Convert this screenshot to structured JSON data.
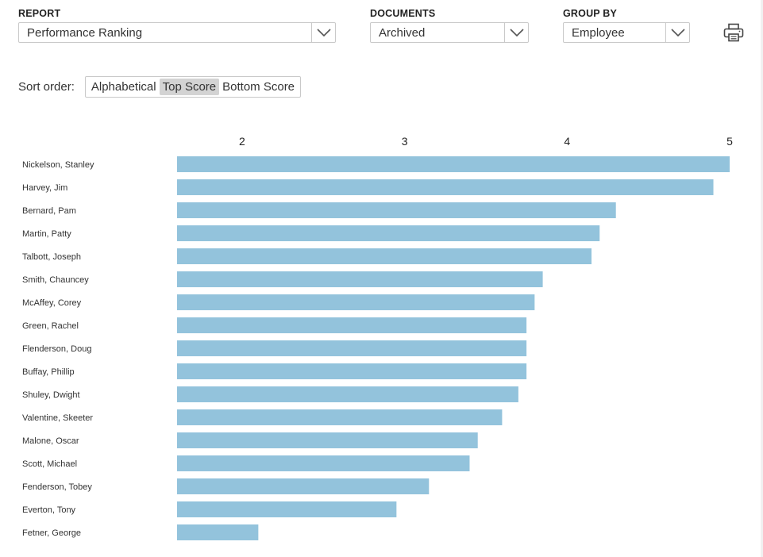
{
  "filters": {
    "report": {
      "label": "REPORT",
      "value": "Performance Ranking"
    },
    "documents": {
      "label": "DOCUMENTS",
      "value": "Archived"
    },
    "group_by": {
      "label": "GROUP BY",
      "value": "Employee"
    }
  },
  "print_icon": "printer-icon",
  "sort": {
    "label": "Sort order:",
    "options": [
      "Alphabetical",
      "Top Score",
      "Bottom Score"
    ],
    "active": "Top Score"
  },
  "colors": {
    "bar": "#93c3dc",
    "active_sort_bg": "#d3d3d3",
    "border": "#c9c9c9"
  },
  "chart_data": {
    "type": "bar",
    "orientation": "horizontal",
    "title": "",
    "xlabel": "",
    "ylabel": "",
    "x_ticks": [
      2,
      3,
      4,
      5
    ],
    "xlim": [
      1.6,
      5
    ],
    "x_axis_position": "top",
    "grid": false,
    "legend": "none",
    "categories": [
      "Nickelson, Stanley",
      "Harvey, Jim",
      "Bernard, Pam",
      "Martin, Patty",
      "Talbott, Joseph",
      "Smith, Chauncey",
      "McAffey, Corey",
      "Green, Rachel",
      "Flenderson, Doug",
      "Buffay, Phillip",
      "Shuley, Dwight",
      "Valentine, Skeeter",
      "Malone, Oscar",
      "Scott, Michael",
      "Fenderson, Tobey",
      "Everton, Tony",
      "Fetner, George"
    ],
    "values": [
      5.0,
      4.9,
      4.3,
      4.2,
      4.15,
      3.85,
      3.8,
      3.75,
      3.75,
      3.75,
      3.7,
      3.6,
      3.45,
      3.4,
      3.15,
      2.95,
      2.1
    ]
  }
}
